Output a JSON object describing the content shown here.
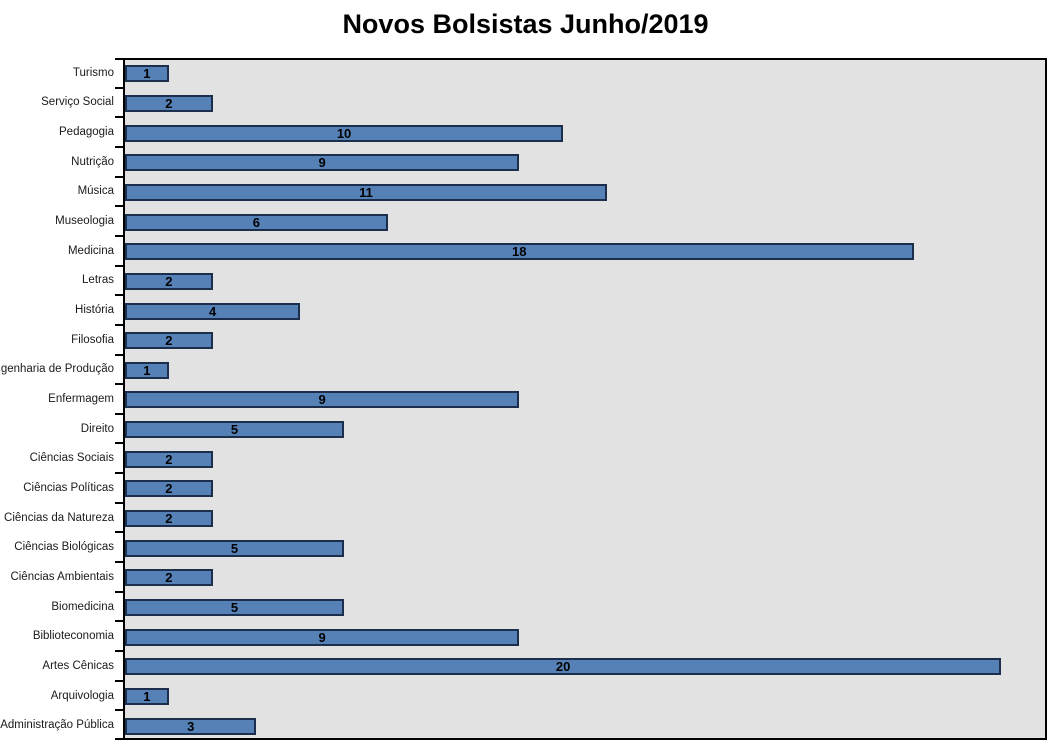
{
  "title": "Novos Bolsistas Junho/2019",
  "colors": {
    "bar_fill": "#5581b6",
    "bar_border": "#1b2e4b",
    "plot_bg": "#e2e2e2",
    "axis": "#000000",
    "title_text": "#000000",
    "label_text": "#1a1a1a"
  },
  "chart_data": {
    "type": "bar",
    "orientation": "horizontal",
    "title": "Novos Bolsistas Junho/2019",
    "xlabel": "",
    "ylabel": "",
    "categories": [
      "Turismo",
      "Serviço Social",
      "Pedagogia",
      "Nutrição",
      "Música",
      "Museologia",
      "Medicina",
      "Letras",
      "História",
      "Filosofia",
      "Engenharia de Produção",
      "Enfermagem",
      "Direito",
      "Ciências Sociais",
      "Ciências Políticas",
      "Ciências da Natureza",
      "Ciências Biológicas",
      "Ciências Ambientais",
      "Biomedicina",
      "Biblioteconomia",
      "Artes Cênicas",
      "Arquivologia",
      "Administração Pública"
    ],
    "values": [
      1,
      2,
      10,
      9,
      11,
      6,
      18,
      2,
      4,
      2,
      1,
      9,
      5,
      2,
      2,
      2,
      5,
      2,
      5,
      9,
      20,
      1,
      3
    ],
    "xlim": [
      0,
      21
    ],
    "grid": false,
    "legend": false,
    "data_labels": "center"
  }
}
